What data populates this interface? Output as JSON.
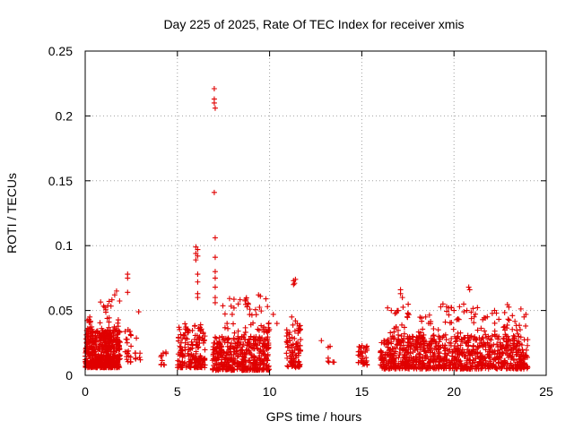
{
  "chart_data": {
    "type": "scatter",
    "title": "Day 225 of 2025, Rate Of TEC Index for receiver xmis",
    "xlabel": "GPS time / hours",
    "ylabel": "ROTI / TECUs",
    "xlim": [
      0,
      25
    ],
    "ylim": [
      0,
      0.25
    ],
    "x_ticks": [
      "0",
      "5",
      "10",
      "15",
      "20",
      "25"
    ],
    "y_ticks": [
      "0",
      "0.05",
      "0.1",
      "0.15",
      "0.2",
      "0.25"
    ],
    "grid": true,
    "marker": "plus",
    "color": "#e00000",
    "series": [
      {
        "clusters": [
          {
            "x": [
              0.0,
              1.9
            ],
            "y": [
              0.006,
              0.035
            ],
            "n": 500
          },
          {
            "x": [
              0.1,
              0.4
            ],
            "y": [
              0.03,
              0.046
            ],
            "n": 15
          },
          {
            "x": [
              0.8,
              1.9
            ],
            "y": [
              0.03,
              0.06
            ],
            "n": 30
          },
          {
            "x": [
              2.1,
              2.5
            ],
            "y": [
              0.01,
              0.04
            ],
            "n": 20
          },
          {
            "x": [
              2.7,
              3.0
            ],
            "y": [
              0.01,
              0.03
            ],
            "n": 8
          },
          {
            "x": [
              4.1,
              4.4
            ],
            "y": [
              0.008,
              0.022
            ],
            "n": 10
          },
          {
            "x": [
              5.0,
              6.5
            ],
            "y": [
              0.006,
              0.04
            ],
            "n": 180
          },
          {
            "x": [
              6.9,
              10.0
            ],
            "y": [
              0.004,
              0.03
            ],
            "n": 420
          },
          {
            "x": [
              7.4,
              10.0
            ],
            "y": [
              0.03,
              0.06
            ],
            "n": 50
          },
          {
            "x": [
              10.9,
              11.7
            ],
            "y": [
              0.006,
              0.04
            ],
            "n": 90
          },
          {
            "x": [
              12.5,
              13.5
            ],
            "y": [
              0.01,
              0.028
            ],
            "n": 8
          },
          {
            "x": [
              14.8,
              15.3
            ],
            "y": [
              0.008,
              0.024
            ],
            "n": 35
          },
          {
            "x": [
              16.0,
              24.0
            ],
            "y": [
              0.005,
              0.03
            ],
            "n": 900
          },
          {
            "x": [
              16.5,
              23.9
            ],
            "y": [
              0.03,
              0.055
            ],
            "n": 110
          }
        ],
        "points": [
          {
            "x": 0.2,
            "y": 0.043
          },
          {
            "x": 0.25,
            "y": 0.045
          },
          {
            "x": 1.7,
            "y": 0.065
          },
          {
            "x": 1.6,
            "y": 0.062
          },
          {
            "x": 1.3,
            "y": 0.057
          },
          {
            "x": 2.3,
            "y": 0.078
          },
          {
            "x": 2.3,
            "y": 0.075
          },
          {
            "x": 2.3,
            "y": 0.064
          },
          {
            "x": 2.9,
            "y": 0.049
          },
          {
            "x": 6.0,
            "y": 0.099
          },
          {
            "x": 6.1,
            "y": 0.097
          },
          {
            "x": 6.0,
            "y": 0.094
          },
          {
            "x": 6.1,
            "y": 0.092
          },
          {
            "x": 6.0,
            "y": 0.089
          },
          {
            "x": 6.1,
            "y": 0.078
          },
          {
            "x": 6.1,
            "y": 0.072
          },
          {
            "x": 6.1,
            "y": 0.063
          },
          {
            "x": 6.1,
            "y": 0.06
          },
          {
            "x": 7.0,
            "y": 0.221
          },
          {
            "x": 7.0,
            "y": 0.213
          },
          {
            "x": 7.0,
            "y": 0.21
          },
          {
            "x": 7.05,
            "y": 0.206
          },
          {
            "x": 7.0,
            "y": 0.141
          },
          {
            "x": 7.05,
            "y": 0.106
          },
          {
            "x": 7.05,
            "y": 0.091
          },
          {
            "x": 7.05,
            "y": 0.08
          },
          {
            "x": 7.05,
            "y": 0.075
          },
          {
            "x": 7.05,
            "y": 0.068
          },
          {
            "x": 7.05,
            "y": 0.06
          },
          {
            "x": 7.05,
            "y": 0.056
          },
          {
            "x": 11.3,
            "y": 0.073
          },
          {
            "x": 11.35,
            "y": 0.071
          },
          {
            "x": 11.3,
            "y": 0.07
          },
          {
            "x": 11.4,
            "y": 0.074
          },
          {
            "x": 11.2,
            "y": 0.045
          },
          {
            "x": 11.4,
            "y": 0.042
          },
          {
            "x": 11.5,
            "y": 0.04
          },
          {
            "x": 9.4,
            "y": 0.062
          },
          {
            "x": 9.5,
            "y": 0.061
          },
          {
            "x": 9.8,
            "y": 0.059
          },
          {
            "x": 8.3,
            "y": 0.055
          },
          {
            "x": 10.2,
            "y": 0.047
          },
          {
            "x": 10.4,
            "y": 0.04
          },
          {
            "x": 17.1,
            "y": 0.066
          },
          {
            "x": 17.1,
            "y": 0.063
          },
          {
            "x": 17.2,
            "y": 0.06
          },
          {
            "x": 16.4,
            "y": 0.052
          },
          {
            "x": 16.6,
            "y": 0.05
          },
          {
            "x": 17.5,
            "y": 0.048
          },
          {
            "x": 19.4,
            "y": 0.055
          },
          {
            "x": 19.6,
            "y": 0.053
          },
          {
            "x": 20.0,
            "y": 0.05
          },
          {
            "x": 20.8,
            "y": 0.068
          },
          {
            "x": 20.85,
            "y": 0.066
          },
          {
            "x": 20.7,
            "y": 0.05
          },
          {
            "x": 22.2,
            "y": 0.05
          },
          {
            "x": 22.3,
            "y": 0.048
          },
          {
            "x": 23.9,
            "y": 0.047
          },
          {
            "x": 23.8,
            "y": 0.045
          }
        ]
      }
    ]
  }
}
